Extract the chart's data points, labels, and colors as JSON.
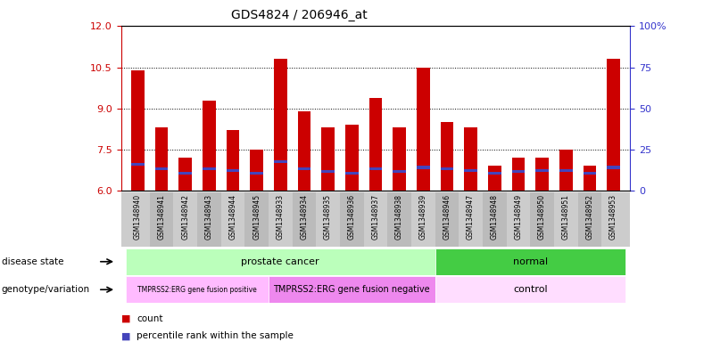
{
  "title": "GDS4824 / 206946_at",
  "samples": [
    "GSM1348940",
    "GSM1348941",
    "GSM1348942",
    "GSM1348943",
    "GSM1348944",
    "GSM1348945",
    "GSM1348933",
    "GSM1348934",
    "GSM1348935",
    "GSM1348936",
    "GSM1348937",
    "GSM1348938",
    "GSM1348939",
    "GSM1348946",
    "GSM1348947",
    "GSM1348948",
    "GSM1348949",
    "GSM1348950",
    "GSM1348951",
    "GSM1348952",
    "GSM1348953"
  ],
  "bar_heights": [
    10.4,
    8.3,
    7.2,
    9.3,
    8.2,
    7.5,
    10.8,
    8.9,
    8.3,
    8.4,
    9.4,
    8.3,
    10.5,
    8.5,
    8.3,
    6.9,
    7.2,
    7.2,
    7.5,
    6.9,
    10.8
  ],
  "blue_marker_pos": [
    6.9,
    6.75,
    6.6,
    6.75,
    6.7,
    6.6,
    7.0,
    6.75,
    6.65,
    6.6,
    6.75,
    6.65,
    6.8,
    6.75,
    6.7,
    6.6,
    6.65,
    6.7,
    6.7,
    6.6,
    6.8
  ],
  "ylim_left": [
    6,
    12
  ],
  "ylim_right": [
    0,
    100
  ],
  "yticks_left": [
    6,
    7.5,
    9,
    10.5,
    12
  ],
  "yticks_right": [
    0,
    25,
    50,
    75,
    100
  ],
  "bar_color": "#cc0000",
  "blue_color": "#4444bb",
  "bar_width": 0.55,
  "disease_state_light_green": "#bbffbb",
  "disease_state_dark_green": "#44cc44",
  "genotype_light_purple": "#ffbbff",
  "genotype_med_purple": "#ee88ee",
  "genotype_lighter_purple": "#ffddff",
  "legend_count_color": "#cc0000",
  "legend_percentile_color": "#4444bb",
  "tick_color_left": "#cc0000",
  "tick_color_right": "#3333cc",
  "sample_label_bg": "#cccccc"
}
